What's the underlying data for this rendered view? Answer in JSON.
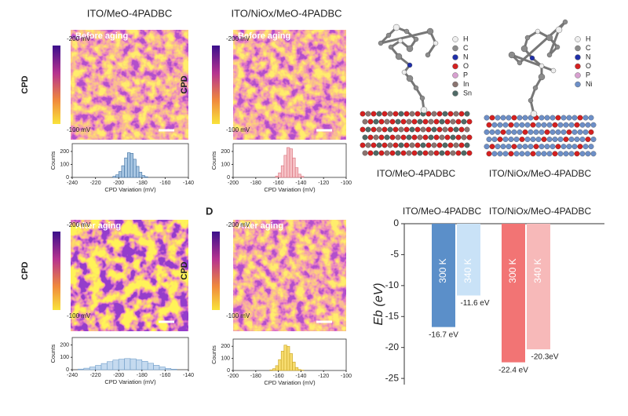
{
  "panels": {
    "afm": [
      {
        "title": "ITO/MeO-4PADBC",
        "status": "Before aging",
        "cbar_top": "-200 mV",
        "cbar_bottom": "-100 mV",
        "cbar_label": "CPD"
      },
      {
        "title": "ITO/NiOx/MeO-4PADBC",
        "status": "Before aging",
        "cbar_top": "-200 mV",
        "cbar_bottom": "-100 mV",
        "cbar_label": "CPD"
      },
      {
        "status": "After aging",
        "cbar_top": "-200 mV",
        "cbar_bottom": "-100 mV",
        "cbar_label": "CPD"
      },
      {
        "panel_label": "D",
        "status": "After aging",
        "cbar_top": "-200 mV",
        "cbar_bottom": "-100 mV",
        "cbar_label": "CPD"
      }
    ],
    "models": [
      {
        "label": "ITO/MeO-4PADBC",
        "atoms": [
          {
            "symbol": "H",
            "color": "#eeeeee"
          },
          {
            "symbol": "C",
            "color": "#8c8c8c"
          },
          {
            "symbol": "N",
            "color": "#1f2fa8"
          },
          {
            "symbol": "O",
            "color": "#d42020"
          },
          {
            "symbol": "P",
            "color": "#d8a0d0"
          },
          {
            "symbol": "In",
            "color": "#8a7470"
          },
          {
            "symbol": "Sn",
            "color": "#4f6a66"
          }
        ]
      },
      {
        "label": "ITO/NiOx/MeO-4PADBC",
        "atoms": [
          {
            "symbol": "H",
            "color": "#eeeeee"
          },
          {
            "symbol": "C",
            "color": "#8c8c8c"
          },
          {
            "symbol": "N",
            "color": "#1f2fa8"
          },
          {
            "symbol": "O",
            "color": "#d42020"
          },
          {
            "symbol": "P",
            "color": "#d8a0d0"
          },
          {
            "symbol": "Ni",
            "color": "#6d8fc7"
          }
        ]
      }
    ]
  },
  "chart_data": [
    {
      "type": "histogram",
      "x_label": "CPD Variation (mV)",
      "y_label": "Counts",
      "color": "#a9c7e3",
      "edgecolor": "#3d6fa0",
      "bins": [
        -205,
        -202.5,
        -200,
        -197.5,
        -195,
        -192.5,
        -190,
        -187.5,
        -185,
        -182.5,
        -180,
        -177.5,
        -175
      ],
      "values": [
        8,
        20,
        45,
        90,
        150,
        190,
        185,
        140,
        85,
        40,
        15,
        5
      ],
      "xlim": [
        -240,
        -140
      ],
      "xticks": [
        -240,
        -220,
        -200,
        -180,
        -160,
        -140
      ],
      "ylim": [
        0,
        260
      ],
      "yticks": [
        0,
        100,
        200
      ]
    },
    {
      "type": "histogram",
      "x_label": "CPD Variation (mV)",
      "y_label": "Counts",
      "color": "#f6c1c6",
      "edgecolor": "#d9707a",
      "bins": [
        -162.5,
        -160,
        -157.5,
        -155,
        -152.5,
        -150,
        -147.5,
        -145,
        -142.5,
        -140,
        -137.5
      ],
      "values": [
        10,
        35,
        90,
        170,
        230,
        220,
        150,
        75,
        25,
        8
      ],
      "xlim": [
        -200,
        -100
      ],
      "xticks": [
        -200,
        -180,
        -160,
        -140,
        -120,
        -100
      ],
      "ylim": [
        0,
        260
      ],
      "yticks": [
        0,
        100,
        200
      ]
    },
    {
      "type": "histogram",
      "x_label": "CPD Variation (mV)",
      "y_label": "Counts",
      "color": "#c5daef",
      "edgecolor": "#6f9dc9",
      "bins": [
        -235,
        -230,
        -225,
        -220,
        -215,
        -210,
        -205,
        -200,
        -195,
        -190,
        -185,
        -180,
        -175,
        -170,
        -165,
        -160,
        -155,
        -150
      ],
      "values": [
        5,
        12,
        22,
        35,
        50,
        65,
        78,
        85,
        90,
        88,
        80,
        68,
        52,
        36,
        22,
        10,
        4
      ],
      "xlim": [
        -240,
        -140
      ],
      "xticks": [
        -240,
        -220,
        -200,
        -180,
        -160,
        -140
      ],
      "ylim": [
        0,
        260
      ],
      "yticks": [
        0,
        100,
        200
      ]
    },
    {
      "type": "histogram",
      "x_label": "CPD Variation (mV)",
      "y_label": "Counts",
      "color": "#f7dc6f",
      "edgecolor": "#c9a424",
      "bins": [
        -167.5,
        -165,
        -162.5,
        -160,
        -157.5,
        -155,
        -152.5,
        -150,
        -147.5,
        -145,
        -142.5,
        -140,
        -137.5
      ],
      "values": [
        5,
        15,
        40,
        90,
        160,
        210,
        200,
        140,
        70,
        25,
        8,
        3
      ],
      "xlim": [
        -200,
        -100
      ],
      "xticks": [
        -200,
        -180,
        -160,
        -140,
        -120,
        -100
      ],
      "ylim": [
        0,
        260
      ],
      "yticks": [
        0,
        100,
        200
      ]
    },
    {
      "type": "bar",
      "y_label": "Eb (eV)",
      "categories": [
        "ITO/MeO-4PADBC",
        "ITO/NiOx/MeO-4PADBC"
      ],
      "series": [
        {
          "name": "300 K",
          "colors": [
            "#5b8fc9",
            "#f27474"
          ],
          "values": [
            -16.7,
            -22.4
          ],
          "value_labels": [
            "-16.7 eV",
            "-22.4 eV"
          ]
        },
        {
          "name": "340 K",
          "colors": [
            "#c9e2f7",
            "#f7b9b9"
          ],
          "values": [
            -11.6,
            -20.3
          ],
          "value_labels": [
            "-11.6 eV",
            "-20.3eV"
          ]
        }
      ],
      "ylim": [
        -26,
        0
      ],
      "yticks": [
        0,
        -5,
        -10,
        -15,
        -20,
        -25
      ]
    }
  ]
}
